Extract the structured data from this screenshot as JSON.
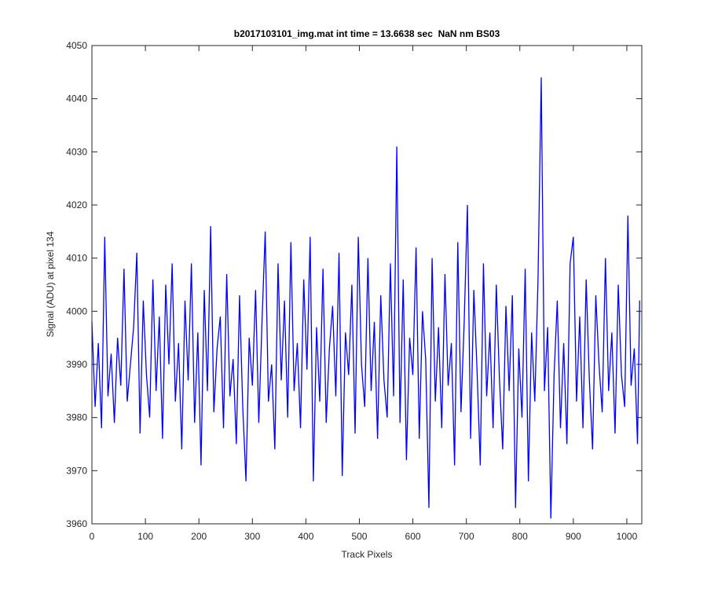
{
  "chart_data": {
    "type": "line",
    "title": "b2017103101_img.mat int time = 13.6638 sec  NaN nm BS03",
    "x_label": "Track Pixels",
    "y_label": "Signal (ADU) at pixel 134",
    "color": "#0000ff",
    "xlim": [
      0,
      1028
    ],
    "ylim": [
      3960,
      4050
    ],
    "xticks": [
      0,
      100,
      200,
      300,
      400,
      500,
      600,
      700,
      800,
      900,
      1000
    ],
    "yticks": [
      3960,
      3970,
      3980,
      3990,
      4000,
      4010,
      4020,
      4030,
      4040,
      4050
    ],
    "x": [
      0,
      6,
      12,
      18,
      24,
      30,
      36,
      42,
      48,
      54,
      60,
      66,
      72,
      78,
      84,
      90,
      96,
      102,
      108,
      114,
      120,
      126,
      132,
      138,
      144,
      150,
      156,
      162,
      168,
      174,
      180,
      186,
      192,
      198,
      204,
      210,
      216,
      222,
      228,
      234,
      240,
      246,
      252,
      258,
      264,
      270,
      276,
      282,
      288,
      294,
      300,
      306,
      312,
      318,
      324,
      330,
      336,
      342,
      348,
      354,
      360,
      366,
      372,
      378,
      384,
      390,
      396,
      402,
      408,
      414,
      420,
      426,
      432,
      438,
      444,
      450,
      456,
      462,
      468,
      474,
      480,
      486,
      492,
      498,
      504,
      510,
      516,
      522,
      528,
      534,
      540,
      546,
      552,
      558,
      564,
      570,
      576,
      582,
      588,
      594,
      600,
      606,
      612,
      618,
      624,
      630,
      636,
      642,
      648,
      654,
      660,
      666,
      672,
      678,
      684,
      690,
      696,
      702,
      708,
      714,
      720,
      726,
      732,
      738,
      744,
      750,
      756,
      762,
      768,
      774,
      780,
      786,
      792,
      798,
      804,
      810,
      816,
      822,
      828,
      834,
      840,
      846,
      852,
      858,
      864,
      870,
      876,
      882,
      888,
      894,
      900,
      906,
      912,
      918,
      924,
      930,
      936,
      942,
      948,
      954,
      960,
      966,
      972,
      978,
      984,
      990,
      996,
      1002,
      1008,
      1014,
      1020,
      1024
    ],
    "values": [
      3998,
      3982,
      3994,
      3978,
      4014,
      3984,
      3992,
      3979,
      3995,
      3986,
      4008,
      3983,
      3990,
      3997,
      4011,
      3977,
      4002,
      3988,
      3980,
      4006,
      3985,
      3999,
      3976,
      4005,
      3990,
      4009,
      3983,
      3994,
      3974,
      4002,
      3987,
      4009,
      3979,
      3996,
      3971,
      4004,
      3985,
      4016,
      3981,
      3993,
      3999,
      3978,
      4007,
      3984,
      3991,
      3975,
      4003,
      3982,
      3968,
      3995,
      3986,
      4004,
      3979,
      3998,
      4015,
      3983,
      3990,
      3974,
      4009,
      3987,
      4002,
      3980,
      4013,
      3985,
      3994,
      3978,
      4006,
      3989,
      4014,
      3968,
      3997,
      3983,
      4008,
      3979,
      3993,
      4001,
      3984,
      4011,
      3969,
      3996,
      3988,
      4005,
      3977,
      4014,
      3990,
      3982,
      4010,
      3985,
      3998,
      3976,
      4003,
      3987,
      3980,
      4009,
      3984,
      4031,
      3979,
      4006,
      3972,
      3995,
      3988,
      4012,
      3976,
      4000,
      3991,
      3963,
      4010,
      3983,
      3997,
      3978,
      4007,
      3986,
      3994,
      3971,
      4013,
      3981,
      3998,
      4020,
      3976,
      4004,
      3989,
      3971,
      4009,
      3984,
      3996,
      3978,
      4005,
      3987,
      3974,
      4001,
      3985,
      4003,
      3963,
      3993,
      3980,
      4008,
      3968,
      3996,
      3983,
      4006,
      4044,
      3985,
      3997,
      3961,
      3988,
      4002,
      3978,
      3994,
      3975,
      4009,
      4014,
      3983,
      3999,
      3978,
      4006,
      3987,
      3974,
      4003,
      3990,
      3981,
      4010,
      3985,
      3996,
      3977,
      4005,
      3988,
      3982,
      4018,
      3986,
      3993,
      3975,
      4002
    ]
  }
}
